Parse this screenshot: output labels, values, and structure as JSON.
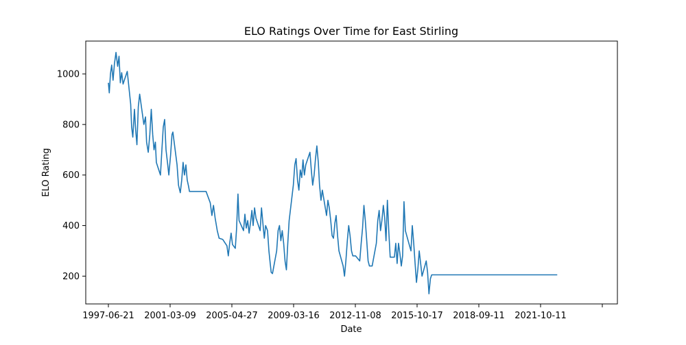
{
  "chart_data": {
    "type": "line",
    "title": "ELO Ratings Over Time for East Stirling",
    "xlabel": "Date",
    "ylabel": "ELO Rating",
    "x_tick_labels": [
      "1997-06-21",
      "2001-03-09",
      "2005-04-27",
      "2009-03-16",
      "2012-11-08",
      "2015-10-17",
      "2018-09-11",
      "2021-10-11",
      ""
    ],
    "y_ticks": [
      200,
      400,
      600,
      800,
      1000
    ],
    "ylim": [
      90,
      1130
    ],
    "grid": false,
    "line_color": "#1f77b4",
    "series": [
      {
        "points": [
          [
            "1997-06-21",
            965
          ],
          [
            "1997-07-10",
            925
          ],
          [
            "1997-08-05",
            1000
          ],
          [
            "1997-09-01",
            1035
          ],
          [
            "1997-10-01",
            975
          ],
          [
            "1997-11-01",
            1040
          ],
          [
            "1997-12-05",
            1085
          ],
          [
            "1998-01-10",
            1030
          ],
          [
            "1998-02-10",
            1070
          ],
          [
            "1998-03-10",
            965
          ],
          [
            "1998-04-10",
            1005
          ],
          [
            "1998-05-10",
            960
          ],
          [
            "1998-08-10",
            1010
          ],
          [
            "1998-09-20",
            940
          ],
          [
            "1998-10-25",
            880
          ],
          [
            "1998-11-15",
            790
          ],
          [
            "1998-12-10",
            750
          ],
          [
            "1999-01-15",
            860
          ],
          [
            "1999-02-10",
            780
          ],
          [
            "1999-03-10",
            720
          ],
          [
            "1999-04-10",
            870
          ],
          [
            "1999-05-10",
            920
          ],
          [
            "1999-08-10",
            800
          ],
          [
            "1999-09-15",
            830
          ],
          [
            "1999-10-10",
            730
          ],
          [
            "1999-11-15",
            690
          ],
          [
            "1999-12-20",
            760
          ],
          [
            "2000-01-20",
            860
          ],
          [
            "2000-02-20",
            760
          ],
          [
            "2000-03-20",
            700
          ],
          [
            "2000-04-20",
            730
          ],
          [
            "2000-05-10",
            650
          ],
          [
            "2000-08-10",
            600
          ],
          [
            "2000-09-10",
            700
          ],
          [
            "2000-10-10",
            790
          ],
          [
            "2000-11-10",
            820
          ],
          [
            "2000-12-10",
            700
          ],
          [
            "2001-01-10",
            650
          ],
          [
            "2001-02-10",
            600
          ],
          [
            "2001-03-20",
            680
          ],
          [
            "2001-04-20",
            760
          ],
          [
            "2001-05-10",
            770
          ],
          [
            "2001-08-10",
            640
          ],
          [
            "2001-09-10",
            560
          ],
          [
            "2001-10-20",
            530
          ],
          [
            "2001-11-20",
            580
          ],
          [
            "2001-12-20",
            650
          ],
          [
            "2002-01-20",
            600
          ],
          [
            "2002-02-20",
            640
          ],
          [
            "2002-03-20",
            580
          ],
          [
            "2002-04-20",
            555
          ],
          [
            "2002-05-10",
            535
          ],
          [
            "2003-05-10",
            535
          ],
          [
            "2003-08-10",
            490
          ],
          [
            "2003-09-15",
            440
          ],
          [
            "2003-10-20",
            480
          ],
          [
            "2003-11-25",
            430
          ],
          [
            "2004-01-10",
            380
          ],
          [
            "2004-02-20",
            350
          ],
          [
            "2004-05-10",
            345
          ],
          [
            "2004-08-10",
            320
          ],
          [
            "2004-09-10",
            280
          ],
          [
            "2004-10-10",
            330
          ],
          [
            "2004-11-10",
            370
          ],
          [
            "2004-12-10",
            325
          ],
          [
            "2005-02-10",
            310
          ],
          [
            "2005-03-10",
            385
          ],
          [
            "2005-04-10",
            525
          ],
          [
            "2005-05-05",
            420
          ],
          [
            "2005-08-10",
            380
          ],
          [
            "2005-09-10",
            445
          ],
          [
            "2005-10-10",
            390
          ],
          [
            "2005-11-10",
            420
          ],
          [
            "2005-12-10",
            370
          ],
          [
            "2006-01-10",
            410
          ],
          [
            "2006-02-10",
            460
          ],
          [
            "2006-03-10",
            400
          ],
          [
            "2006-04-10",
            470
          ],
          [
            "2006-05-10",
            430
          ],
          [
            "2006-08-10",
            380
          ],
          [
            "2006-09-10",
            470
          ],
          [
            "2006-10-10",
            410
          ],
          [
            "2006-11-10",
            350
          ],
          [
            "2006-12-10",
            400
          ],
          [
            "2007-01-20",
            380
          ],
          [
            "2007-02-20",
            300
          ],
          [
            "2007-03-20",
            250
          ],
          [
            "2007-04-10",
            215
          ],
          [
            "2007-05-10",
            210
          ],
          [
            "2007-08-10",
            300
          ],
          [
            "2007-09-10",
            380
          ],
          [
            "2007-10-10",
            400
          ],
          [
            "2007-11-10",
            340
          ],
          [
            "2007-12-10",
            380
          ],
          [
            "2008-01-10",
            330
          ],
          [
            "2008-02-10",
            260
          ],
          [
            "2008-03-10",
            225
          ],
          [
            "2008-04-10",
            330
          ],
          [
            "2008-05-10",
            420
          ],
          [
            "2008-08-10",
            560
          ],
          [
            "2008-09-10",
            640
          ],
          [
            "2008-10-10",
            665
          ],
          [
            "2008-11-10",
            580
          ],
          [
            "2008-12-10",
            540
          ],
          [
            "2009-01-10",
            620
          ],
          [
            "2009-02-10",
            590
          ],
          [
            "2009-03-10",
            660
          ],
          [
            "2009-04-10",
            600
          ],
          [
            "2009-05-10",
            640
          ],
          [
            "2009-08-10",
            690
          ],
          [
            "2009-09-10",
            620
          ],
          [
            "2009-10-10",
            560
          ],
          [
            "2009-11-10",
            600
          ],
          [
            "2009-12-10",
            665
          ],
          [
            "2010-01-10",
            715
          ],
          [
            "2010-02-10",
            650
          ],
          [
            "2010-03-10",
            560
          ],
          [
            "2010-04-10",
            500
          ],
          [
            "2010-05-10",
            540
          ],
          [
            "2010-08-10",
            440
          ],
          [
            "2010-09-10",
            500
          ],
          [
            "2010-10-10",
            470
          ],
          [
            "2010-11-10",
            420
          ],
          [
            "2010-12-10",
            360
          ],
          [
            "2011-01-10",
            350
          ],
          [
            "2011-02-10",
            410
          ],
          [
            "2011-03-10",
            440
          ],
          [
            "2011-04-10",
            360
          ],
          [
            "2011-05-10",
            300
          ],
          [
            "2011-08-10",
            240
          ],
          [
            "2011-09-10",
            200
          ],
          [
            "2011-10-10",
            260
          ],
          [
            "2011-11-10",
            340
          ],
          [
            "2011-12-10",
            400
          ],
          [
            "2012-01-10",
            360
          ],
          [
            "2012-02-10",
            300
          ],
          [
            "2012-03-10",
            280
          ],
          [
            "2012-05-10",
            280
          ],
          [
            "2012-08-10",
            260
          ],
          [
            "2012-09-10",
            330
          ],
          [
            "2012-10-10",
            390
          ],
          [
            "2012-11-10",
            480
          ],
          [
            "2012-12-10",
            420
          ],
          [
            "2013-01-10",
            340
          ],
          [
            "2013-02-10",
            260
          ],
          [
            "2013-03-10",
            240
          ],
          [
            "2013-05-10",
            240
          ],
          [
            "2013-08-10",
            330
          ],
          [
            "2013-09-10",
            420
          ],
          [
            "2013-10-10",
            460
          ],
          [
            "2013-11-10",
            380
          ],
          [
            "2013-12-10",
            420
          ],
          [
            "2014-01-10",
            480
          ],
          [
            "2014-02-10",
            430
          ],
          [
            "2014-03-10",
            340
          ],
          [
            "2014-04-10",
            500
          ],
          [
            "2014-05-10",
            380
          ],
          [
            "2014-06-10",
            275
          ],
          [
            "2014-09-10",
            275
          ],
          [
            "2014-10-10",
            330
          ],
          [
            "2014-11-10",
            250
          ],
          [
            "2014-12-10",
            330
          ],
          [
            "2015-01-10",
            290
          ],
          [
            "2015-02-10",
            240
          ],
          [
            "2015-03-10",
            280
          ],
          [
            "2015-04-10",
            495
          ],
          [
            "2015-05-10",
            380
          ],
          [
            "2015-08-10",
            320
          ],
          [
            "2015-09-10",
            300
          ],
          [
            "2015-10-10",
            400
          ],
          [
            "2015-11-10",
            330
          ],
          [
            "2015-12-10",
            250
          ],
          [
            "2016-01-10",
            175
          ],
          [
            "2016-02-10",
            230
          ],
          [
            "2016-03-10",
            300
          ],
          [
            "2016-04-10",
            250
          ],
          [
            "2016-05-10",
            200
          ],
          [
            "2016-08-10",
            260
          ],
          [
            "2016-09-10",
            215
          ],
          [
            "2016-10-10",
            130
          ],
          [
            "2016-11-10",
            190
          ],
          [
            "2016-12-10",
            205
          ],
          [
            "2024-07-01",
            205
          ]
        ]
      }
    ]
  }
}
